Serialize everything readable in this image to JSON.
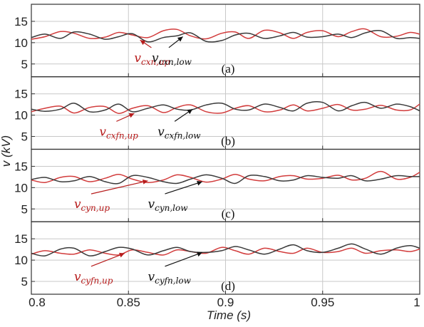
{
  "chart_data": {
    "type": "line",
    "xlabel": "Time (s)",
    "ylabel": "v (kV)",
    "xlim": [
      0.8,
      1.0
    ],
    "ylim": [
      2,
      19
    ],
    "x_ticks": [
      "0.8",
      "0.85",
      "0.9",
      "0.95",
      "1"
    ],
    "y_ticks": [
      "5",
      "10",
      "15"
    ],
    "grid": true,
    "colors": {
      "up": "#d23c3c",
      "low": "#3a3a3a",
      "annot_up": "#b71c1c",
      "annot_low": "#111111"
    },
    "panels": [
      {
        "tag": "(a)",
        "series": [
          {
            "name": "v_cxn,up",
            "label_main": "v",
            "label_sub": "cxn,up",
            "color": "up",
            "x": [
              0.8,
              0.807,
              0.815,
              0.822,
              0.83,
              0.838,
              0.845,
              0.852,
              0.86,
              0.868,
              0.875,
              0.882,
              0.89,
              0.898,
              0.905,
              0.912,
              0.92,
              0.928,
              0.935,
              0.942,
              0.95,
              0.958,
              0.965,
              0.972,
              0.98,
              0.988,
              0.995,
              1.0
            ],
            "y": [
              10.8,
              11.4,
              12.6,
              12.2,
              11.0,
              11.3,
              12.4,
              11.8,
              11.2,
              12.8,
              13.1,
              11.6,
              10.9,
              12.2,
              12.5,
              11.0,
              12.9,
              12.3,
              11.0,
              12.4,
              12.8,
              11.4,
              12.6,
              13.2,
              11.4,
              11.5,
              12.4,
              12.0
            ]
          },
          {
            "name": "v_cxn,low",
            "label_main": "v",
            "label_sub": "cxn,low",
            "color": "low",
            "x": [
              0.8,
              0.807,
              0.815,
              0.822,
              0.83,
              0.838,
              0.845,
              0.852,
              0.86,
              0.868,
              0.875,
              0.882,
              0.89,
              0.898,
              0.905,
              0.912,
              0.92,
              0.928,
              0.935,
              0.942,
              0.95,
              0.958,
              0.965,
              0.972,
              0.98,
              0.988,
              0.995,
              1.0
            ],
            "y": [
              11.2,
              12.0,
              11.0,
              12.5,
              12.0,
              10.8,
              11.4,
              12.1,
              10.2,
              11.2,
              11.6,
              12.3,
              10.3,
              10.5,
              11.8,
              12.2,
              11.0,
              11.6,
              12.4,
              11.3,
              11.4,
              12.0,
              11.2,
              12.3,
              12.8,
              11.0,
              11.2,
              11.0
            ]
          }
        ],
        "annotations": [
          {
            "series": 0,
            "x": 0.853,
            "y": 6.5,
            "arrow_to": [
              0.856,
              10.6
            ]
          },
          {
            "series": 1,
            "x": 0.862,
            "y": 6.5,
            "arrow_to": [
              0.878,
              11.4
            ]
          }
        ]
      },
      {
        "tag": "(b)",
        "series": [
          {
            "name": "v_cxfn,up",
            "label_main": "v",
            "label_sub": "cxfn,up",
            "color": "up",
            "x": [
              0.8,
              0.807,
              0.815,
              0.822,
              0.83,
              0.838,
              0.845,
              0.852,
              0.86,
              0.868,
              0.875,
              0.882,
              0.89,
              0.898,
              0.905,
              0.912,
              0.92,
              0.928,
              0.935,
              0.942,
              0.95,
              0.958,
              0.965,
              0.972,
              0.98,
              0.988,
              0.995,
              1.0
            ],
            "y": [
              10.8,
              11.6,
              12.1,
              10.5,
              11.8,
              12.0,
              10.4,
              11.6,
              12.2,
              10.6,
              11.8,
              12.4,
              10.8,
              10.5,
              11.6,
              12.2,
              10.8,
              11.2,
              12.4,
              11.0,
              11.6,
              12.5,
              11.2,
              11.4,
              12.3,
              11.2,
              11.2,
              12.6
            ]
          },
          {
            "name": "v_cxfn,low",
            "label_main": "v",
            "label_sub": "cxfn,low",
            "color": "low",
            "x": [
              0.8,
              0.807,
              0.815,
              0.822,
              0.83,
              0.838,
              0.845,
              0.852,
              0.86,
              0.868,
              0.875,
              0.882,
              0.89,
              0.898,
              0.905,
              0.912,
              0.92,
              0.928,
              0.935,
              0.942,
              0.95,
              0.958,
              0.965,
              0.972,
              0.98,
              0.988,
              0.995,
              1.0
            ],
            "y": [
              11.4,
              10.9,
              11.4,
              12.8,
              10.8,
              11.2,
              12.6,
              10.8,
              11.6,
              12.4,
              11.4,
              11.2,
              12.4,
              12.8,
              11.4,
              11.2,
              12.6,
              11.8,
              11.0,
              12.8,
              13.0,
              11.0,
              12.2,
              13.0,
              11.6,
              12.6,
              12.0,
              11.0
            ]
          }
        ],
        "annotations": [
          {
            "series": 0,
            "x": 0.835,
            "y": 6.2,
            "arrow_to": [
              0.853,
              10.4
            ]
          },
          {
            "series": 1,
            "x": 0.865,
            "y": 6.2,
            "arrow_to": [
              0.883,
              11.4
            ]
          }
        ]
      },
      {
        "tag": "(c)",
        "series": [
          {
            "name": "v_cyn,up",
            "label_main": "v",
            "label_sub": "cyn,up",
            "color": "up",
            "x": [
              0.8,
              0.807,
              0.815,
              0.822,
              0.83,
              0.838,
              0.845,
              0.852,
              0.86,
              0.868,
              0.875,
              0.882,
              0.89,
              0.898,
              0.905,
              0.912,
              0.92,
              0.928,
              0.935,
              0.942,
              0.95,
              0.958,
              0.965,
              0.972,
              0.98,
              0.988,
              0.995,
              1.0
            ],
            "y": [
              11.8,
              11.2,
              12.4,
              12.6,
              11.4,
              12.2,
              13.1,
              12.0,
              11.2,
              11.8,
              13.0,
              12.4,
              11.3,
              12.0,
              13.1,
              12.0,
              11.6,
              12.6,
              12.8,
              12.0,
              12.2,
              12.9,
              11.8,
              12.2,
              13.8,
              12.0,
              12.4,
              13.6
            ]
          },
          {
            "name": "v_cyn,low",
            "label_main": "v",
            "label_sub": "cyn,low",
            "color": "low",
            "x": [
              0.8,
              0.807,
              0.815,
              0.822,
              0.83,
              0.838,
              0.845,
              0.852,
              0.86,
              0.868,
              0.875,
              0.882,
              0.89,
              0.898,
              0.905,
              0.912,
              0.92,
              0.928,
              0.935,
              0.942,
              0.95,
              0.958,
              0.965,
              0.972,
              0.98,
              0.988,
              0.995,
              1.0
            ],
            "y": [
              11.9,
              12.4,
              11.4,
              11.6,
              12.6,
              11.4,
              11.0,
              12.8,
              12.4,
              11.4,
              11.0,
              12.0,
              13.0,
              12.2,
              11.0,
              12.8,
              12.6,
              11.6,
              11.8,
              12.8,
              12.4,
              12.2,
              12.8,
              11.6,
              12.0,
              12.8,
              12.6,
              12.6
            ]
          }
        ],
        "annotations": [
          {
            "series": 0,
            "x": 0.822,
            "y": 6.2,
            "arrow_to": [
              0.86,
              11.6
            ]
          },
          {
            "series": 1,
            "x": 0.86,
            "y": 6.2,
            "arrow_to": [
              0.888,
              11.4
            ]
          }
        ]
      },
      {
        "tag": "(d)",
        "series": [
          {
            "name": "v_cyfn,up",
            "label_main": "v",
            "label_sub": "cyfn,up",
            "color": "up",
            "x": [
              0.8,
              0.807,
              0.815,
              0.822,
              0.83,
              0.838,
              0.845,
              0.852,
              0.86,
              0.868,
              0.875,
              0.882,
              0.89,
              0.898,
              0.905,
              0.912,
              0.92,
              0.928,
              0.935,
              0.942,
              0.95,
              0.958,
              0.965,
              0.972,
              0.98,
              0.988,
              0.995,
              1.0
            ],
            "y": [
              11.4,
              12.2,
              11.6,
              11.4,
              12.4,
              11.6,
              11.2,
              12.4,
              11.8,
              11.2,
              12.4,
              12.0,
              11.6,
              13.0,
              12.2,
              11.4,
              12.8,
              12.0,
              11.6,
              12.8,
              11.8,
              12.0,
              12.8,
              11.6,
              12.2,
              12.4,
              12.0,
              12.6
            ]
          },
          {
            "name": "v_cyfn,low",
            "label_main": "v",
            "label_sub": "cyfn,low",
            "color": "low",
            "x": [
              0.8,
              0.807,
              0.815,
              0.822,
              0.83,
              0.838,
              0.845,
              0.852,
              0.86,
              0.868,
              0.875,
              0.882,
              0.89,
              0.898,
              0.905,
              0.912,
              0.92,
              0.928,
              0.935,
              0.942,
              0.95,
              0.958,
              0.965,
              0.972,
              0.98,
              0.988,
              0.995,
              1.0
            ],
            "y": [
              11.6,
              11.0,
              12.6,
              12.8,
              11.0,
              12.0,
              13.0,
              12.6,
              11.2,
              12.2,
              13.0,
              12.0,
              11.8,
              12.2,
              13.2,
              12.4,
              11.4,
              12.6,
              13.6,
              12.2,
              11.8,
              12.8,
              13.8,
              12.6,
              11.4,
              12.8,
              13.4,
              12.8
            ]
          }
        ],
        "annotations": [
          {
            "series": 0,
            "x": 0.822,
            "y": 6.2,
            "arrow_to": [
              0.848,
              11.6
            ]
          },
          {
            "series": 1,
            "x": 0.86,
            "y": 6.2,
            "arrow_to": [
              0.888,
              11.8
            ]
          }
        ]
      }
    ]
  }
}
